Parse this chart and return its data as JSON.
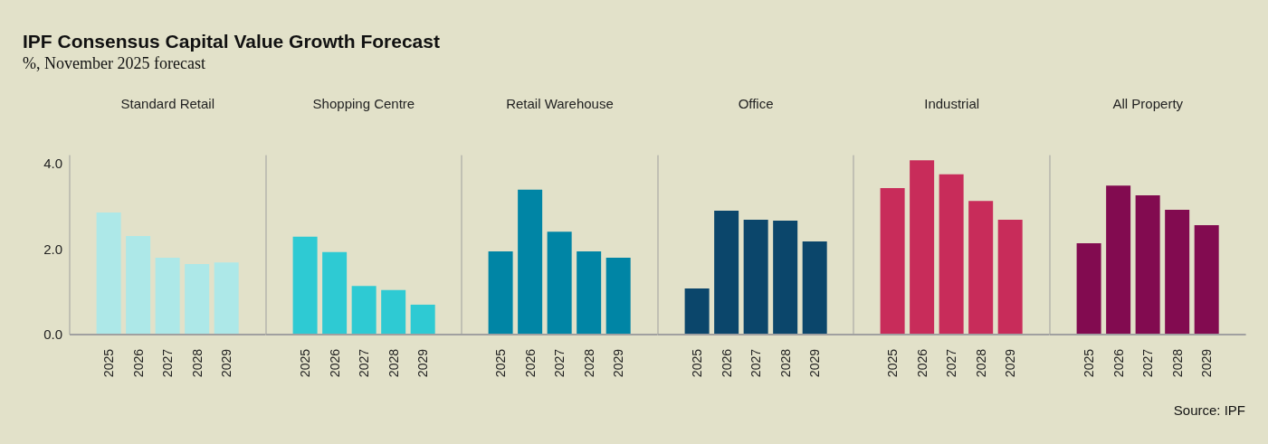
{
  "chart_data": [
    {
      "type": "other",
      "title": "IPF Consensus Capital Value Growth Forecast",
      "subtitle": "%, November 2025 forecast",
      "annotations": [
        "Source: IPF"
      ]
    },
    {
      "type": "bar",
      "title": "Standard Retail",
      "categories": [
        "2025",
        "2026",
        "2027",
        "2028",
        "2029"
      ],
      "values": [
        2.86,
        2.31,
        1.8,
        1.65,
        1.69
      ],
      "color": "#ade8e8",
      "ylim": [
        0,
        4.2
      ],
      "yticks": [
        {
          "value": 0,
          "label": "0.0"
        },
        {
          "value": 2,
          "label": "2.0"
        },
        {
          "value": 4,
          "label": "4.0"
        }
      ]
    },
    {
      "type": "bar",
      "title": "Shopping Centre",
      "categories": [
        "2025",
        "2026",
        "2027",
        "2028",
        "2029"
      ],
      "values": [
        2.29,
        1.93,
        1.14,
        1.04,
        0.7
      ],
      "color": "#2ecad3",
      "ylim": [
        0,
        4.2
      ],
      "tick_labels": "x"
    },
    {
      "type": "bar",
      "title": "Retail Warehouse",
      "categories": [
        "2025",
        "2026",
        "2027",
        "2028",
        "2029"
      ],
      "values": [
        1.95,
        3.39,
        2.41,
        1.95,
        1.8
      ],
      "color": "#0085a5",
      "ylim": [
        0,
        4.2
      ],
      "tick_labels": "x"
    },
    {
      "type": "bar",
      "title": "Office",
      "categories": [
        "2025",
        "2026",
        "2027",
        "2028",
        "2029"
      ],
      "values": [
        1.08,
        2.9,
        2.69,
        2.67,
        2.18
      ],
      "color": "#0b466b",
      "ylim": [
        0,
        4.2
      ],
      "tick_labels": "x"
    },
    {
      "type": "bar",
      "title": "Industrial",
      "categories": [
        "2025",
        "2026",
        "2027",
        "2028",
        "2029"
      ],
      "values": [
        3.43,
        4.08,
        3.75,
        3.13,
        2.69
      ],
      "color": "#c82c5a",
      "ylim": [
        0,
        4.2
      ],
      "tick_labels": "x"
    },
    {
      "type": "bar",
      "title": "All Property",
      "categories": [
        "2025",
        "2026",
        "2027",
        "2028",
        "2029"
      ],
      "values": [
        2.14,
        3.49,
        3.26,
        2.92,
        2.56
      ],
      "color": "#820b50",
      "ylim": [
        0,
        4.2
      ],
      "tick_labels": "x"
    }
  ]
}
